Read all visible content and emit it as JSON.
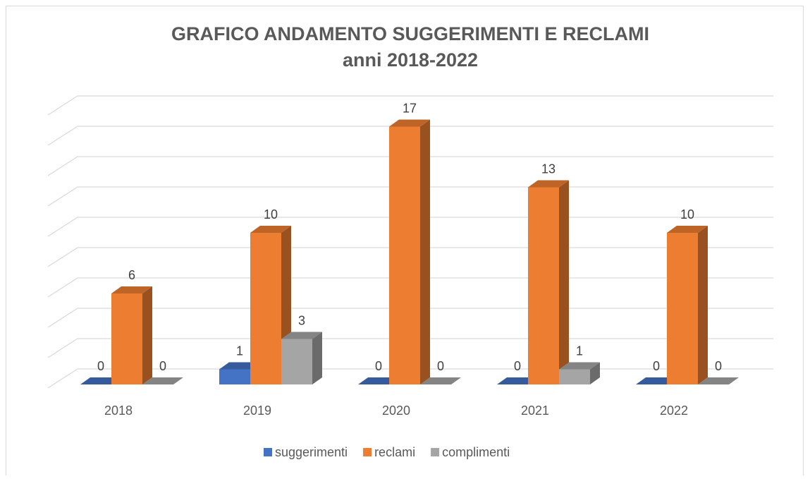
{
  "chart_data": {
    "type": "bar3d",
    "title": "GRAFICO ANDAMENTO SUGGERIMENTI E RECLAMI",
    "subtitle": "anni 2018-2022",
    "categories": [
      "2018",
      "2019",
      "2020",
      "2021",
      "2022"
    ],
    "series": [
      {
        "name": "suggerimenti",
        "color": "#4472c4",
        "values": [
          0,
          1,
          0,
          0,
          0
        ]
      },
      {
        "name": "reclami",
        "color": "#ed7d31",
        "values": [
          6,
          10,
          17,
          13,
          10
        ]
      },
      {
        "name": "complimenti",
        "color": "#a5a5a5",
        "values": [
          0,
          3,
          0,
          1,
          0
        ]
      }
    ],
    "ylim": [
      0,
      18
    ],
    "yticks": [
      0,
      2,
      4,
      6,
      8,
      10,
      12,
      14,
      16,
      18
    ],
    "grid": true,
    "legend": "bottom"
  }
}
